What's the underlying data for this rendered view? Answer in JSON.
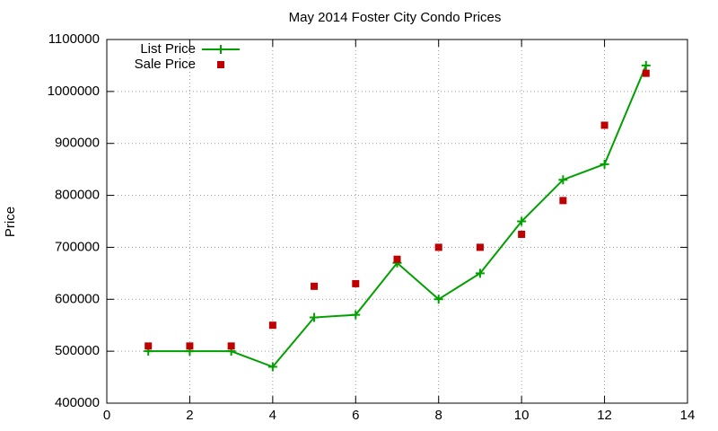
{
  "chart_data": {
    "type": "line",
    "title": "May 2014 Foster City Condo Prices",
    "ylabel": "Price",
    "x": [
      1,
      2,
      3,
      4,
      5,
      6,
      7,
      8,
      9,
      10,
      11,
      12,
      13
    ],
    "series": [
      {
        "name": "List Price",
        "color": "#00a000",
        "style": "linespoints",
        "values": [
          500000,
          500000,
          500000,
          470000,
          565000,
          570000,
          670000,
          600000,
          650000,
          750000,
          830000,
          860000,
          1050000
        ]
      },
      {
        "name": "Sale Price",
        "color": "#c00000",
        "style": "points",
        "values": [
          510000,
          510000,
          510000,
          550000,
          625000,
          630000,
          677000,
          700000,
          700000,
          725000,
          790000,
          935000,
          1035000
        ]
      }
    ],
    "xlim": [
      0,
      14
    ],
    "xticks": [
      0,
      2,
      4,
      6,
      8,
      10,
      12,
      14
    ],
    "ylim": [
      400000,
      1100000
    ],
    "yticks": [
      400000,
      500000,
      600000,
      700000,
      800000,
      900000,
      1000000,
      1100000
    ],
    "grid": true,
    "legend": "top-left"
  }
}
